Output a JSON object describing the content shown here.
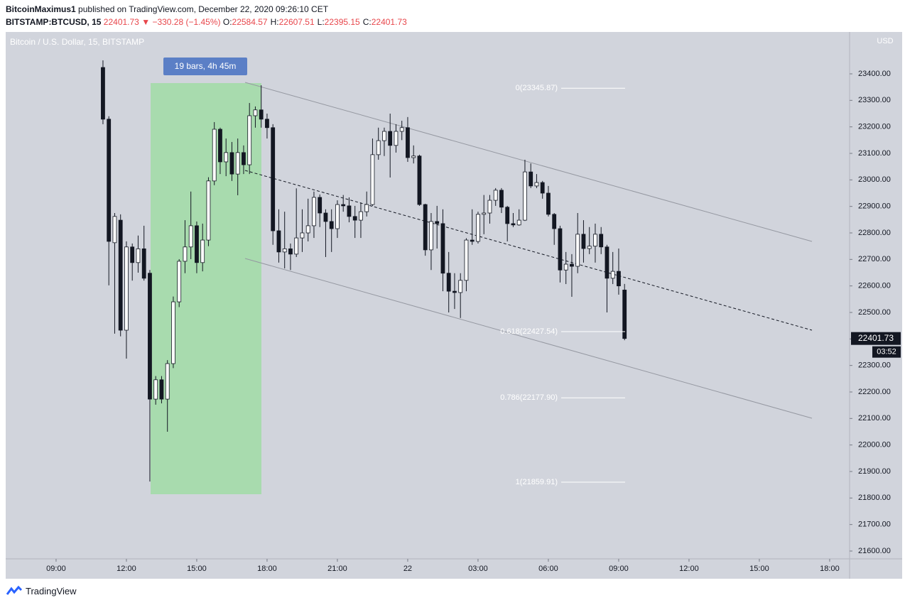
{
  "header": {
    "author": "BitcoinMaximus1",
    "published": "published on TradingView.com, December 22, 2020 09:26:10 CET",
    "symbol": "BITSTAMP:BTCUSD, 15",
    "price": "22401.73",
    "arrow": "▼",
    "change": "−330.28 (−1.45%)",
    "ohlc": [
      {
        "label": "O:",
        "value": "22584.57"
      },
      {
        "label": "H:",
        "value": "22607.51"
      },
      {
        "label": "L:",
        "value": "22395.15"
      },
      {
        "label": "C:",
        "value": "22401.73"
      }
    ]
  },
  "footer": {
    "brand": "TradingView"
  },
  "chart_data": {
    "type": "candlestick",
    "title": "Bitcoin / U.S. Dollar, 15, BITSTAMP",
    "currency": "USD",
    "x": [
      11,
      11.25,
      11.5,
      11.75,
      12,
      12.25,
      12.5,
      12.75,
      13,
      13.25,
      13.5,
      13.75,
      14,
      14.25,
      14.5,
      14.75,
      15,
      15.25,
      15.5,
      15.75,
      16,
      16.25,
      16.5,
      16.75,
      17,
      17.25,
      17.5,
      17.75,
      18,
      18.25,
      18.5,
      18.75,
      19,
      19.25,
      19.5,
      19.75,
      20,
      20.25,
      20.5,
      20.75,
      21,
      21.25,
      21.5,
      21.75,
      22,
      22.25,
      22.5,
      22.75,
      23,
      23.25,
      23.5,
      23.75,
      24,
      24.25,
      24.5,
      24.75,
      25,
      25.25,
      25.5,
      25.75,
      26,
      26.25,
      26.5,
      26.75,
      27,
      27.25,
      27.5,
      27.75,
      28,
      28.25,
      28.5,
      28.75,
      29,
      29.25,
      29.5,
      29.75,
      30,
      30.25,
      30.5,
      30.75,
      31,
      31.25,
      31.5,
      31.75,
      32,
      32.25,
      32.5,
      32.75,
      33,
      33.25
    ],
    "open": [
      23424,
      23229,
      22763,
      22848,
      22433,
      22747,
      22688,
      22740,
      22648,
      22173,
      22246,
      22173,
      22307,
      22540,
      22693,
      22747,
      22827,
      22688,
      22773,
      22996,
      23191,
      23068,
      23103,
      23022,
      23103,
      23057,
      23242,
      23264,
      23229,
      23197,
      22808,
      22728,
      22740,
      22720,
      22781,
      22800,
      22827,
      22934,
      22875,
      22843,
      22816,
      22907,
      22902,
      22862,
      22848,
      22880,
      22907,
      23095,
      23148,
      23183,
      23130,
      23183,
      23197,
      23084,
      23090,
      22907,
      22736,
      22843,
      22835,
      22648,
      22580,
      22575,
      22621,
      22773,
      22768,
      22870,
      22875,
      22923,
      22961,
      22897,
      22835,
      22830,
      22848,
      23030,
      22977,
      22990,
      22950,
      22870,
      22816,
      22660,
      22682,
      22674,
      22795,
      22741,
      22750,
      22795,
      22747,
      22629,
      22655,
      22584.57
    ],
    "high": [
      23451,
      23240,
      22875,
      22870,
      22768,
      22760,
      22790,
      22827,
      22660,
      22260,
      22260,
      22320,
      22560,
      22701,
      22848,
      22956,
      22843,
      22835,
      23010,
      23218,
      23197,
      23156,
      23143,
      23156,
      23130,
      23290,
      23277,
      23357,
      23250,
      23210,
      22889,
      22880,
      22760,
      22968,
      22889,
      22929,
      22956,
      22945,
      22889,
      22889,
      22923,
      22943,
      22934,
      22902,
      22915,
      22956,
      23156,
      23197,
      23197,
      23250,
      23210,
      23223,
      23237,
      23130,
      23095,
      22910,
      22875,
      22902,
      22889,
      22728,
      22648,
      22648,
      22780,
      22889,
      22880,
      22943,
      22943,
      22969,
      22969,
      22902,
      22875,
      22889,
      23076,
      23062,
      23022,
      22996,
      22977,
      22875,
      22827,
      22728,
      22720,
      22875,
      22848,
      22822,
      22835,
      22822,
      22755,
      22728,
      22741,
      22607.51
    ],
    "low": [
      23210,
      22602,
      22420,
      22410,
      22326,
      22620,
      22650,
      22620,
      21862,
      22152,
      22157,
      22050,
      22290,
      22520,
      22648,
      22701,
      22648,
      22655,
      22750,
      22980,
      23022,
      23014,
      22996,
      22942,
      23022,
      23022,
      23197,
      23197,
      23156,
      22755,
      22688,
      22666,
      22660,
      22709,
      22728,
      22768,
      22781,
      22822,
      22709,
      22728,
      22781,
      22880,
      22840,
      22781,
      22781,
      22862,
      22902,
      23076,
      23090,
      23009,
      23103,
      23150,
      23068,
      23062,
      22902,
      22714,
      22660,
      22741,
      22580,
      22500,
      22513,
      22479,
      22580,
      22755,
      22760,
      22795,
      22835,
      22902,
      22875,
      22768,
      22822,
      22827,
      22845,
      22969,
      22969,
      22929,
      22862,
      22755,
      22613,
      22607,
      22559,
      22648,
      22688,
      22720,
      22688,
      22720,
      22500,
      22607,
      22567,
      22395.15
    ],
    "close": [
      23229,
      22768,
      22862,
      22433,
      22747,
      22688,
      22740,
      22629,
      22173,
      22246,
      22173,
      22307,
      22540,
      22693,
      22747,
      22827,
      22688,
      22773,
      22996,
      23191,
      23068,
      23103,
      23022,
      23103,
      23057,
      23242,
      23264,
      23229,
      23197,
      22808,
      22728,
      22740,
      22720,
      22781,
      22800,
      22827,
      22934,
      22875,
      22843,
      22816,
      22907,
      22902,
      22862,
      22848,
      22880,
      22907,
      23095,
      23148,
      23183,
      23130,
      23183,
      23197,
      23084,
      23090,
      22907,
      22736,
      22843,
      22835,
      22648,
      22580,
      22575,
      22621,
      22773,
      22768,
      22870,
      22875,
      22923,
      22961,
      22897,
      22835,
      22830,
      22848,
      23030,
      22977,
      22990,
      22950,
      22870,
      22816,
      22660,
      22682,
      22674,
      22795,
      22741,
      22750,
      22795,
      22747,
      22629,
      22655,
      22600,
      22401.73
    ],
    "up_color": "#ffffff",
    "down_color": "#131722",
    "ylim": [
      21570.5,
      23558
    ],
    "yticks": [
      {
        "value": 21600,
        "label": "21600.00"
      },
      {
        "value": 21700,
        "label": "21700.00"
      },
      {
        "value": 21800,
        "label": "21800.00"
      },
      {
        "value": 21900,
        "label": "21900.00"
      },
      {
        "value": 22000,
        "label": "22000.00"
      },
      {
        "value": 22100,
        "label": "22100.00"
      },
      {
        "value": 22200,
        "label": "22200.00"
      },
      {
        "value": 22300,
        "label": "22300.00"
      },
      {
        "value": 22400,
        "label": "22400.00"
      },
      {
        "value": 22500,
        "label": "22500.00"
      },
      {
        "value": 22600,
        "label": "22600.00"
      },
      {
        "value": 22700,
        "label": "22700.00"
      },
      {
        "value": 22800,
        "label": "22800.00"
      },
      {
        "value": 22900,
        "label": "22900.00"
      },
      {
        "value": 23000,
        "label": "23000.00"
      },
      {
        "value": 23100,
        "label": "23100.00"
      },
      {
        "value": 23200,
        "label": "23200.00"
      },
      {
        "value": 23300,
        "label": "23300.00"
      },
      {
        "value": 23400,
        "label": "23400.00"
      }
    ],
    "xlim": [
      6.85,
      42.85
    ],
    "xticks": [
      {
        "value": 9,
        "label": "09:00"
      },
      {
        "value": 12,
        "label": "12:00"
      },
      {
        "value": 15,
        "label": "15:00"
      },
      {
        "value": 18,
        "label": "18:00"
      },
      {
        "value": 21,
        "label": "21:00"
      },
      {
        "value": 24,
        "label": "22"
      },
      {
        "value": 27,
        "label": "03:00"
      },
      {
        "value": 30,
        "label": "06:00"
      },
      {
        "value": 33,
        "label": "09:00"
      },
      {
        "value": 36,
        "label": "12:00"
      },
      {
        "value": 39,
        "label": "15:00"
      },
      {
        "value": 42,
        "label": "18:00"
      }
    ],
    "fib_levels": [
      {
        "label": "0(23345.87)",
        "value": 23345.87
      },
      {
        "label": "0.618(22427.54)",
        "value": 22427.54
      },
      {
        "label": "0.786(22177.90)",
        "value": 22177.9
      },
      {
        "label": "1(21859.91)",
        "value": 21859.91
      }
    ],
    "last_price": {
      "value": 22401.73,
      "label": "22401.73"
    },
    "countdown": "03:52",
    "range_label": "19 bars, 4h 45m"
  }
}
